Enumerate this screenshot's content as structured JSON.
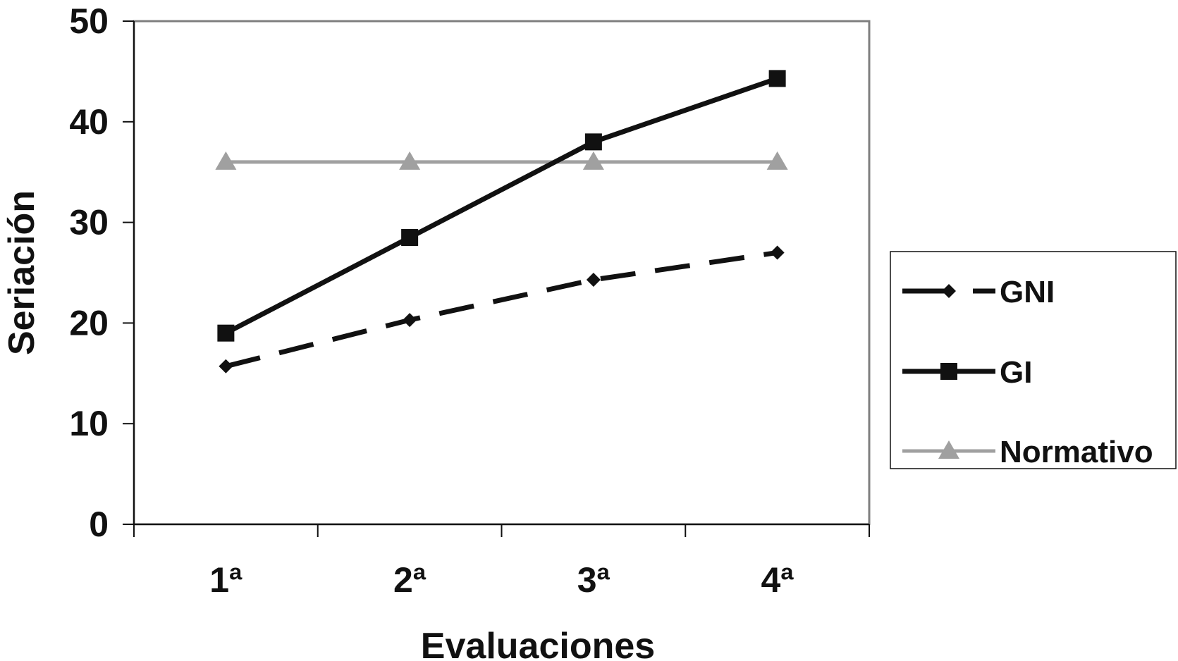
{
  "chart_data": {
    "type": "line",
    "categories": [
      "1ª",
      "2ª",
      "3ª",
      "4ª"
    ],
    "series": [
      {
        "name": "GNI",
        "values": [
          15.7,
          20.3,
          24.3,
          27.0
        ],
        "color": "#111111",
        "style": "dashed",
        "marker": "diamond"
      },
      {
        "name": "GI",
        "values": [
          19.0,
          28.5,
          38.0,
          44.3
        ],
        "color": "#111111",
        "style": "solid",
        "marker": "square"
      },
      {
        "name": "Normativo",
        "values": [
          36.0,
          36.0,
          36.0,
          36.0
        ],
        "color": "#a0a0a0",
        "style": "solid",
        "marker": "triangle"
      }
    ],
    "xlabel": "Evaluaciones",
    "ylabel": "Seriación",
    "ylim": [
      0,
      50
    ],
    "yticks": [
      "0",
      "10",
      "20",
      "30",
      "40",
      "50"
    ],
    "grid": false,
    "legend_position": "right"
  }
}
